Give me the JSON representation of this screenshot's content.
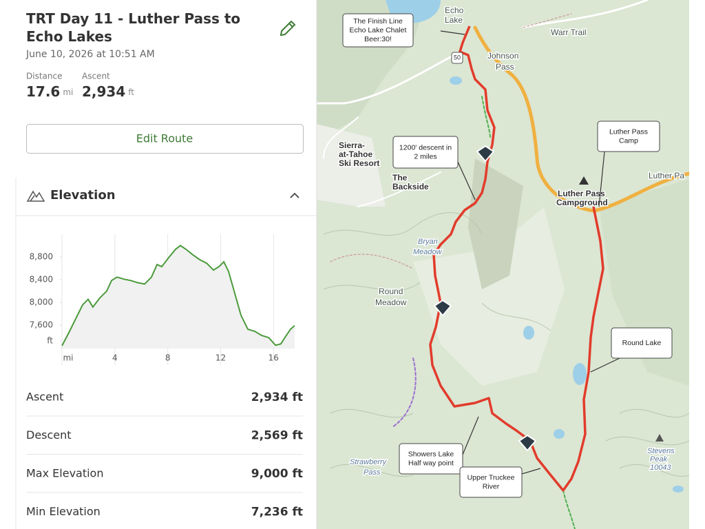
{
  "header": {
    "title": "TRT Day 11 - Luther Pass to Echo Lakes",
    "date": "June 10, 2026 at 10:51 AM"
  },
  "summary": [
    {
      "label": "Distance",
      "value": "17.6",
      "unit": "mi"
    },
    {
      "label": "Ascent",
      "value": "2,934",
      "unit": "ft"
    }
  ],
  "button": "Edit Route",
  "section": "Elevation",
  "chart_data": {
    "type": "line",
    "x": [
      0,
      0.52,
      1.04,
      1.56,
      1.98,
      2.34,
      2.86,
      3.39,
      3.75,
      4.17,
      4.69,
      5.21,
      5.73,
      6.25,
      6.77,
      7.19,
      7.55,
      8.07,
      8.59,
      8.96,
      9.38,
      9.9,
      10.42,
      10.94,
      11.46,
      11.88,
      12.24,
      12.6,
      13.02,
      13.54,
      14.06,
      14.58,
      15.1,
      15.63,
      16.15,
      16.56,
      16.93,
      17.29,
      17.6
    ],
    "series": [
      {
        "name": "Elevation",
        "color": "#4a9a3a",
        "values": [
          7236,
          7467,
          7712,
          7956,
          8054,
          7919,
          8078,
          8201,
          8384,
          8445,
          8409,
          8384,
          8347,
          8323,
          8445,
          8665,
          8629,
          8788,
          8935,
          9000,
          8935,
          8837,
          8751,
          8690,
          8568,
          8629,
          8714,
          8543,
          8201,
          7773,
          7528,
          7491,
          7418,
          7381,
          7246,
          7270,
          7406,
          7528,
          7590
        ]
      }
    ],
    "xlim": [
      0,
      17.6
    ],
    "ylim": [
      7200,
      9200
    ],
    "xticks": [
      {
        "value": 0,
        "label": "mi"
      },
      4,
      8,
      12,
      16
    ],
    "yticks": [
      {
        "value": 7320,
        "label": "ft"
      },
      {
        "value": 7600,
        "label": "7,600"
      },
      {
        "value": 8000,
        "label": "8,000"
      },
      {
        "value": 8400,
        "label": "8,400"
      },
      {
        "value": 8800,
        "label": "8,800"
      }
    ],
    "grid": "x"
  },
  "stats": [
    {
      "label": "Ascent",
      "value": "2,934 ft"
    },
    {
      "label": "Descent",
      "value": "2,569 ft"
    },
    {
      "label": "Max Elevation",
      "value": "9,000 ft"
    },
    {
      "label": "Min Elevation",
      "value": "7,236 ft"
    }
  ],
  "map": {
    "places": [
      "Echo",
      "Lake",
      "Johnson",
      "Pass",
      "Warr Trail",
      "Sierra-",
      "at-Tahoe",
      "Ski Resort",
      "The",
      "Backside",
      "Bryan",
      "Meadow",
      "Round",
      "Meadow",
      "Luther Pass",
      "Campground",
      "Luther Pa",
      "Strawberry",
      "Pass",
      "Stevens",
      "Peak",
      "10043",
      "50"
    ],
    "callouts": [
      [
        "The Finish Line",
        "Echo Lake Chalet",
        "Beer:30!"
      ],
      [
        "1200' descent in",
        "2 miles"
      ],
      [
        "Luther Pass",
        "Camp"
      ],
      [
        "Round Lake"
      ],
      [
        "Showers Lake",
        "Half way point"
      ],
      [
        "Upper Truckee",
        "River"
      ]
    ]
  }
}
